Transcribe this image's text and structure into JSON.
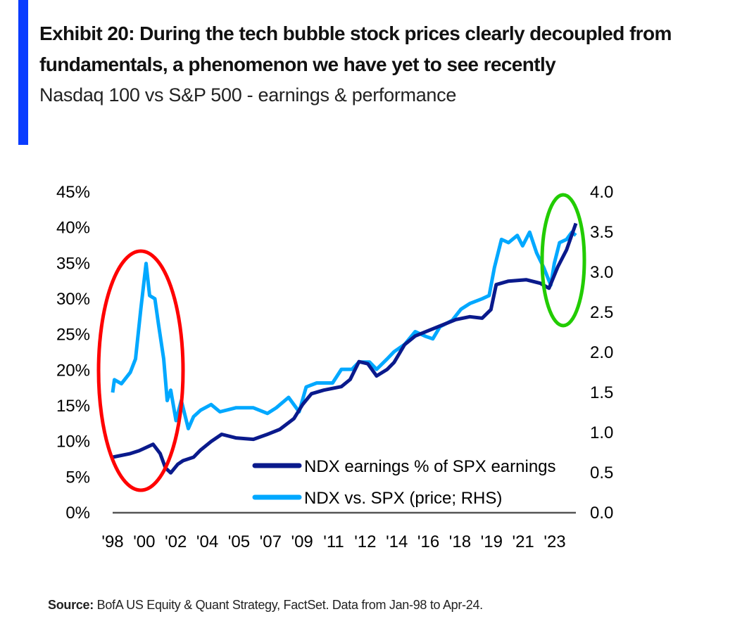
{
  "title": "Exhibit 20: During the tech bubble stock prices clearly decoupled from fundamentals, a phenomenon we have yet to see recently",
  "subtitle": "Nasdaq 100 vs S&P 500 - earnings & performance",
  "source_label": "Source:",
  "source_text": " BofA US Equity & Quant Strategy, FactSet. Data from Jan-98 to Apr-24.",
  "colors": {
    "accent_bar": "#0a3cff",
    "ndx_earnings": "#0a1a8c",
    "ndx_vs_spx": "#00a8ff",
    "bubble_highlight": "#ff0000",
    "recent_highlight": "#22cc00"
  },
  "chart_data": {
    "type": "line",
    "grid": false,
    "legend_position": "bottom-right",
    "x_tick_labels": [
      "'98",
      "'00",
      "'02",
      "'04",
      "'05",
      "'07",
      "'09",
      "'11",
      "'12",
      "'14",
      "'16",
      "'18",
      "'19",
      "'21",
      "'23"
    ],
    "xlim": [
      1998.0,
      2024.33
    ],
    "y_left": {
      "ylim": [
        0,
        45
      ],
      "ticks": [
        "0%",
        "5%",
        "10%",
        "15%",
        "20%",
        "25%",
        "30%",
        "35%",
        "40%",
        "45%"
      ]
    },
    "y_right": {
      "ylim": [
        0,
        4.0
      ],
      "ticks": [
        "0.0",
        "0.5",
        "1.0",
        "1.5",
        "2.0",
        "2.5",
        "3.0",
        "3.5",
        "4.0"
      ]
    },
    "series": [
      {
        "name": "NDX earnings % of SPX earnings",
        "axis": "left",
        "x": [
          1998.0,
          1999.0,
          1999.5,
          2000.3,
          2000.7,
          2001.0,
          2001.3,
          2001.7,
          2002.0,
          2002.6,
          2003.0,
          2003.6,
          2004.2,
          2005.0,
          2006.0,
          2006.8,
          2007.5,
          2008.3,
          2008.8,
          2009.3,
          2010.0,
          2011.0,
          2011.5,
          2012.0,
          2012.5,
          2013.0,
          2013.6,
          2014.0,
          2014.6,
          2015.2,
          2016.0,
          2017.0,
          2017.5,
          2018.3,
          2019.0,
          2019.5,
          2019.8,
          2020.5,
          2021.5,
          2022.3,
          2022.8,
          2023.3,
          2023.8,
          2024.33
        ],
        "y": [
          7.7,
          8.2,
          8.6,
          9.5,
          8.2,
          6.2,
          5.5,
          6.7,
          7.2,
          7.7,
          8.7,
          9.9,
          10.9,
          10.4,
          10.2,
          10.9,
          11.6,
          13.1,
          15.1,
          16.6,
          17.1,
          17.6,
          18.6,
          21.1,
          20.8,
          19.1,
          20.0,
          21.0,
          23.5,
          24.7,
          25.5,
          26.5,
          27.0,
          27.4,
          27.2,
          28.4,
          31.9,
          32.4,
          32.6,
          32.1,
          31.4,
          34.4,
          36.8,
          40.5
        ]
      },
      {
        "name": "NDX vs. SPX (price; RHS)",
        "axis": "right",
        "x": [
          1998.0,
          1998.1,
          1998.5,
          1999.0,
          1999.3,
          1999.6,
          1999.9,
          2000.1,
          2000.4,
          2000.6,
          2000.9,
          2001.1,
          2001.3,
          2001.6,
          2001.9,
          2002.3,
          2002.6,
          2003.0,
          2003.6,
          2004.1,
          2005.0,
          2006.0,
          2006.8,
          2007.3,
          2008.0,
          2008.6,
          2009.0,
          2009.6,
          2010.5,
          2011.0,
          2011.6,
          2012.0,
          2012.6,
          2013.0,
          2013.6,
          2014.0,
          2014.6,
          2015.2,
          2015.8,
          2016.2,
          2016.6,
          2017.3,
          2017.8,
          2018.3,
          2019.0,
          2019.4,
          2019.7,
          2020.1,
          2020.5,
          2021.0,
          2021.3,
          2021.7,
          2022.1,
          2022.5,
          2022.9,
          2023.1,
          2023.4,
          2023.8,
          2024.1,
          2024.33
        ],
        "y": [
          1.49,
          1.65,
          1.6,
          1.74,
          1.91,
          2.53,
          3.1,
          2.7,
          2.66,
          2.35,
          1.91,
          1.39,
          1.52,
          1.14,
          1.39,
          1.04,
          1.19,
          1.27,
          1.34,
          1.25,
          1.3,
          1.3,
          1.23,
          1.3,
          1.43,
          1.25,
          1.56,
          1.61,
          1.61,
          1.78,
          1.78,
          1.87,
          1.87,
          1.78,
          1.91,
          2.0,
          2.09,
          2.25,
          2.19,
          2.16,
          2.31,
          2.39,
          2.53,
          2.6,
          2.66,
          2.7,
          3.05,
          3.4,
          3.36,
          3.45,
          3.32,
          3.49,
          3.23,
          3.05,
          2.83,
          3.1,
          3.36,
          3.4,
          3.49,
          3.45
        ]
      }
    ]
  }
}
